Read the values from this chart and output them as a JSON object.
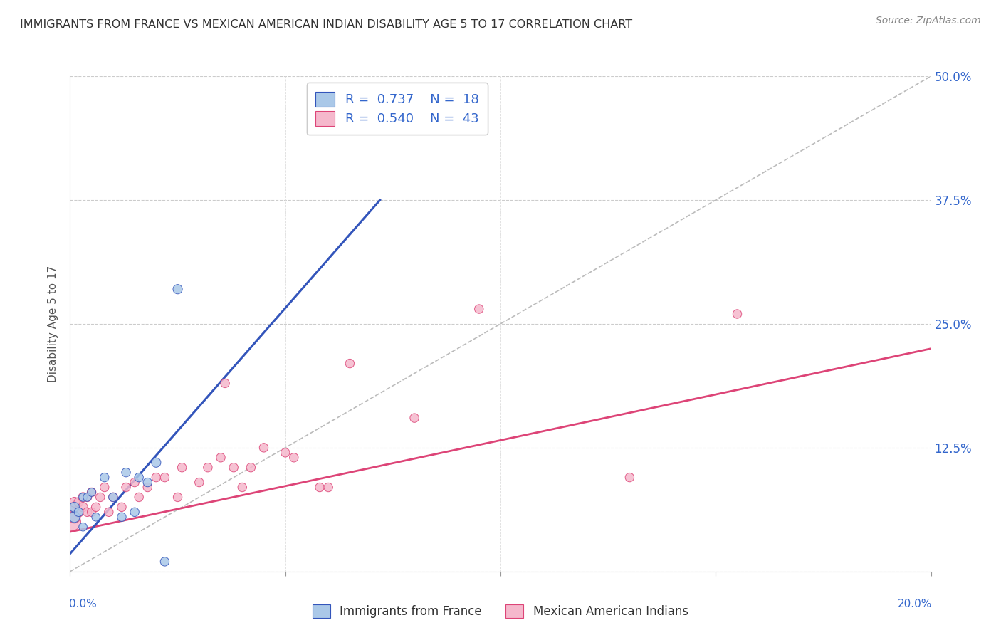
{
  "title": "IMMIGRANTS FROM FRANCE VS MEXICAN AMERICAN INDIAN DISABILITY AGE 5 TO 17 CORRELATION CHART",
  "source": "Source: ZipAtlas.com",
  "ylabel": "Disability Age 5 to 17",
  "y_ticks": [
    0.0,
    0.125,
    0.25,
    0.375,
    0.5
  ],
  "y_tick_labels_right": [
    "",
    "12.5%",
    "25.0%",
    "37.5%",
    "50.0%"
  ],
  "x_lim": [
    0.0,
    0.2
  ],
  "y_lim": [
    0.0,
    0.5
  ],
  "blue_color": "#aac8e8",
  "blue_line_color": "#3355bb",
  "pink_color": "#f5b8cc",
  "pink_line_color": "#dd4477",
  "blue_scatter_x": [
    0.001,
    0.001,
    0.002,
    0.003,
    0.003,
    0.004,
    0.005,
    0.006,
    0.008,
    0.01,
    0.012,
    0.013,
    0.015,
    0.016,
    0.018,
    0.02,
    0.022,
    0.025
  ],
  "blue_scatter_y": [
    0.055,
    0.065,
    0.06,
    0.045,
    0.075,
    0.075,
    0.08,
    0.055,
    0.095,
    0.075,
    0.055,
    0.1,
    0.06,
    0.095,
    0.09,
    0.11,
    0.01,
    0.285
  ],
  "blue_scatter_sizes": [
    120,
    100,
    80,
    70,
    70,
    70,
    70,
    70,
    80,
    80,
    80,
    80,
    80,
    80,
    80,
    90,
    80,
    90
  ],
  "pink_scatter_x": [
    0.0005,
    0.001,
    0.001,
    0.001,
    0.002,
    0.002,
    0.003,
    0.003,
    0.004,
    0.004,
    0.005,
    0.005,
    0.006,
    0.007,
    0.008,
    0.009,
    0.01,
    0.012,
    0.013,
    0.015,
    0.016,
    0.018,
    0.02,
    0.022,
    0.025,
    0.026,
    0.03,
    0.032,
    0.035,
    0.036,
    0.038,
    0.04,
    0.042,
    0.045,
    0.05,
    0.052,
    0.058,
    0.06,
    0.065,
    0.08,
    0.095,
    0.13,
    0.155
  ],
  "pink_scatter_y": [
    0.05,
    0.055,
    0.065,
    0.07,
    0.06,
    0.07,
    0.065,
    0.075,
    0.06,
    0.075,
    0.06,
    0.08,
    0.065,
    0.075,
    0.085,
    0.06,
    0.075,
    0.065,
    0.085,
    0.09,
    0.075,
    0.085,
    0.095,
    0.095,
    0.075,
    0.105,
    0.09,
    0.105,
    0.115,
    0.19,
    0.105,
    0.085,
    0.105,
    0.125,
    0.12,
    0.115,
    0.085,
    0.085,
    0.21,
    0.155,
    0.265,
    0.095,
    0.26
  ],
  "pink_scatter_sizes": [
    300,
    150,
    120,
    100,
    100,
    90,
    90,
    90,
    80,
    80,
    80,
    80,
    80,
    80,
    80,
    80,
    80,
    80,
    80,
    80,
    80,
    80,
    80,
    80,
    80,
    80,
    80,
    80,
    80,
    80,
    80,
    80,
    80,
    80,
    80,
    80,
    80,
    80,
    80,
    80,
    80,
    80,
    80
  ],
  "blue_line_x": [
    0.0,
    0.072
  ],
  "blue_line_y": [
    0.018,
    0.375
  ],
  "pink_line_x": [
    0.0,
    0.2
  ],
  "pink_line_y": [
    0.04,
    0.225
  ],
  "ref_line_x": [
    0.0,
    0.2
  ],
  "ref_line_y": [
    0.0,
    0.5
  ],
  "legend_label1": "Immigrants from France",
  "legend_label2": "Mexican American Indians",
  "legend_r1": "R = 0.737",
  "legend_n1": "N = 18",
  "legend_r2": "R = 0.540",
  "legend_n2": "N = 43",
  "background_color": "#ffffff",
  "title_fontsize": 11.5,
  "axis_label_color": "#3366cc",
  "ylabel_color": "#555555"
}
